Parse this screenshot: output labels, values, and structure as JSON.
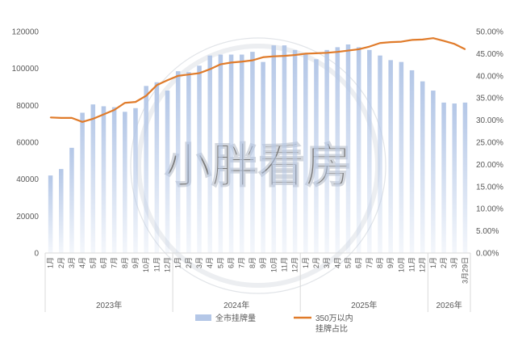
{
  "chart_data": {
    "type": "bar+line",
    "title": "",
    "colors": {
      "bar": "#b4c7e7",
      "line": "#e07b2a",
      "axis": "#d9d9d9",
      "watermark": "#c9ced6"
    },
    "watermark": "小胖看房",
    "left_axis": {
      "ylim": [
        0,
        120000
      ],
      "ticks": [
        "0",
        "20000",
        "40000",
        "60000",
        "80000",
        "100000",
        "120000"
      ]
    },
    "right_axis": {
      "ylim": [
        0,
        50
      ],
      "ticks": [
        "0.00%",
        "5.00%",
        "10.00%",
        "15.00%",
        "20.00%",
        "25.00%",
        "30.00%",
        "35.00%",
        "40.00%",
        "45.00%",
        "50.00%"
      ]
    },
    "categories": [
      "1月",
      "2月",
      "3月",
      "4月",
      "5月",
      "6月",
      "7月",
      "8月",
      "9月",
      "10月",
      "11月",
      "12月",
      "1月",
      "2月",
      "3月",
      "4月",
      "5月",
      "6月",
      "7月",
      "8月",
      "9月",
      "10月",
      "11月",
      "12月",
      "1月",
      "2月",
      "3月",
      "4月",
      "5月",
      "6月",
      "7月",
      "8月",
      "9月",
      "10月",
      "11月",
      "12月",
      "1月",
      "2月",
      "3月",
      "3月29日"
    ],
    "years": [
      {
        "label": "2023年",
        "count": 12
      },
      {
        "label": "2024年",
        "count": 12
      },
      {
        "label": "2025年",
        "count": 12
      },
      {
        "label": "2026年",
        "count": 4
      }
    ],
    "series": [
      {
        "name": "全市挂牌量",
        "kind": "bar",
        "axis": "left",
        "values": [
          42000,
          45500,
          57000,
          76000,
          80500,
          79500,
          79000,
          76500,
          78500,
          90500,
          92500,
          88000,
          98500,
          98000,
          101500,
          107000,
          107500,
          107500,
          107500,
          109000,
          103500,
          112500,
          112500,
          110000,
          107500,
          105000,
          110000,
          111500,
          113000,
          111500,
          110000,
          107000,
          104500,
          103500,
          99000,
          93000,
          88000,
          81500,
          81000,
          81500
        ]
      },
      {
        "name": "350万以内挂牌占比",
        "kind": "line",
        "axis": "right",
        "values": [
          30.6,
          30.5,
          30.5,
          29.6,
          30.3,
          31.3,
          32.3,
          33.9,
          34.1,
          35.5,
          37.9,
          39.0,
          40.0,
          40.3,
          40.6,
          41.5,
          42.6,
          43.0,
          43.2,
          43.5,
          44.2,
          44.4,
          44.5,
          44.7,
          45.0,
          45.1,
          45.2,
          45.4,
          45.7,
          46.0,
          46.6,
          47.4,
          47.6,
          47.7,
          48.1,
          48.2,
          48.5,
          47.9,
          47.2,
          46.0
        ]
      }
    ],
    "legend": {
      "position": "bottom",
      "items": [
        "全市挂牌量",
        "350万以内\n挂牌占比"
      ]
    }
  }
}
